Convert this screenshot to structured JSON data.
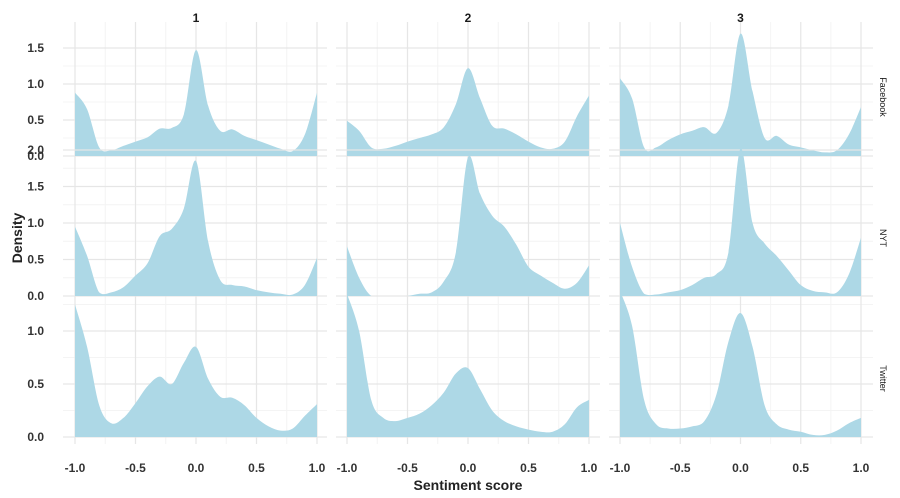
{
  "chart_data": {
    "type": "area",
    "subtype": "faceted density plot",
    "title": "",
    "xlabel": "Sentiment score",
    "ylabel": "Density",
    "fill_color": "#add8e6",
    "grid": true,
    "columns": [
      "1",
      "2",
      "3"
    ],
    "rows": [
      "Facebook",
      "NYT",
      "Twitter"
    ],
    "xlim": [
      -1.0,
      1.0
    ],
    "x_ticks": [
      "-1.0",
      "-0.5",
      "0.0",
      "0.5",
      "1.0"
    ],
    "row_scales": [
      {
        "row": "Facebook",
        "ylim": [
          0,
          1.7
        ],
        "y_ticks": [
          "0.0",
          "0.5",
          "1.0",
          "1.5"
        ]
      },
      {
        "row": "NYT",
        "ylim": [
          0,
          2.1
        ],
        "y_ticks": [
          "0.0",
          "0.5",
          "1.0",
          "1.5",
          "2.0"
        ]
      },
      {
        "row": "Twitter",
        "ylim": [
          0,
          1.45
        ],
        "y_ticks": [
          "0.0",
          "0.5",
          "1.0"
        ]
      }
    ],
    "x": [
      -1.0,
      -0.9,
      -0.8,
      -0.7,
      -0.6,
      -0.5,
      -0.4,
      -0.3,
      -0.2,
      -0.1,
      0.0,
      0.1,
      0.2,
      0.3,
      0.4,
      0.5,
      0.6,
      0.7,
      0.8,
      0.9,
      1.0
    ],
    "panels": [
      {
        "row": "Facebook",
        "col": "1",
        "values": [
          0.88,
          0.65,
          0.12,
          0.08,
          0.14,
          0.2,
          0.26,
          0.38,
          0.39,
          0.58,
          1.47,
          0.7,
          0.35,
          0.37,
          0.28,
          0.22,
          0.16,
          0.1,
          0.07,
          0.3,
          0.88
        ]
      },
      {
        "row": "Facebook",
        "col": "2",
        "values": [
          0.49,
          0.35,
          0.12,
          0.1,
          0.14,
          0.2,
          0.25,
          0.3,
          0.4,
          0.72,
          1.22,
          0.8,
          0.42,
          0.38,
          0.3,
          0.2,
          0.12,
          0.1,
          0.2,
          0.55,
          0.84
        ]
      },
      {
        "row": "Facebook",
        "col": "3",
        "values": [
          1.08,
          0.8,
          0.12,
          0.12,
          0.22,
          0.3,
          0.35,
          0.4,
          0.32,
          0.7,
          1.7,
          0.9,
          0.25,
          0.28,
          0.16,
          0.12,
          0.08,
          0.05,
          0.08,
          0.3,
          0.68
        ]
      },
      {
        "row": "NYT",
        "col": "1",
        "values": [
          0.95,
          0.55,
          0.05,
          0.05,
          0.12,
          0.28,
          0.45,
          0.82,
          0.92,
          1.2,
          1.85,
          0.75,
          0.22,
          0.15,
          0.13,
          0.08,
          0.05,
          0.03,
          0.02,
          0.15,
          0.52
        ]
      },
      {
        "row": "NYT",
        "col": "2",
        "values": [
          0.68,
          0.25,
          0.0,
          0.0,
          0.0,
          0.0,
          0.03,
          0.05,
          0.2,
          0.6,
          1.9,
          1.4,
          1.1,
          0.95,
          0.7,
          0.4,
          0.28,
          0.18,
          0.1,
          0.18,
          0.42
        ]
      },
      {
        "row": "NYT",
        "col": "3",
        "values": [
          1.0,
          0.4,
          0.03,
          0.02,
          0.05,
          0.08,
          0.15,
          0.25,
          0.3,
          0.6,
          2.02,
          1.0,
          0.72,
          0.55,
          0.35,
          0.15,
          0.07,
          0.05,
          0.05,
          0.3,
          0.8
        ]
      },
      {
        "row": "Twitter",
        "col": "1",
        "values": [
          1.25,
          0.85,
          0.3,
          0.13,
          0.18,
          0.32,
          0.48,
          0.57,
          0.5,
          0.7,
          0.85,
          0.55,
          0.38,
          0.37,
          0.3,
          0.18,
          0.1,
          0.06,
          0.08,
          0.2,
          0.31
        ]
      },
      {
        "row": "Twitter",
        "col": "2",
        "values": [
          1.35,
          1.0,
          0.35,
          0.18,
          0.15,
          0.18,
          0.22,
          0.3,
          0.42,
          0.6,
          0.65,
          0.45,
          0.25,
          0.15,
          0.1,
          0.07,
          0.05,
          0.05,
          0.12,
          0.28,
          0.35
        ]
      },
      {
        "row": "Twitter",
        "col": "3",
        "values": [
          1.38,
          1.05,
          0.35,
          0.12,
          0.08,
          0.08,
          0.1,
          0.15,
          0.4,
          0.9,
          1.17,
          0.85,
          0.3,
          0.12,
          0.07,
          0.05,
          0.02,
          0.02,
          0.06,
          0.13,
          0.18
        ]
      }
    ]
  }
}
